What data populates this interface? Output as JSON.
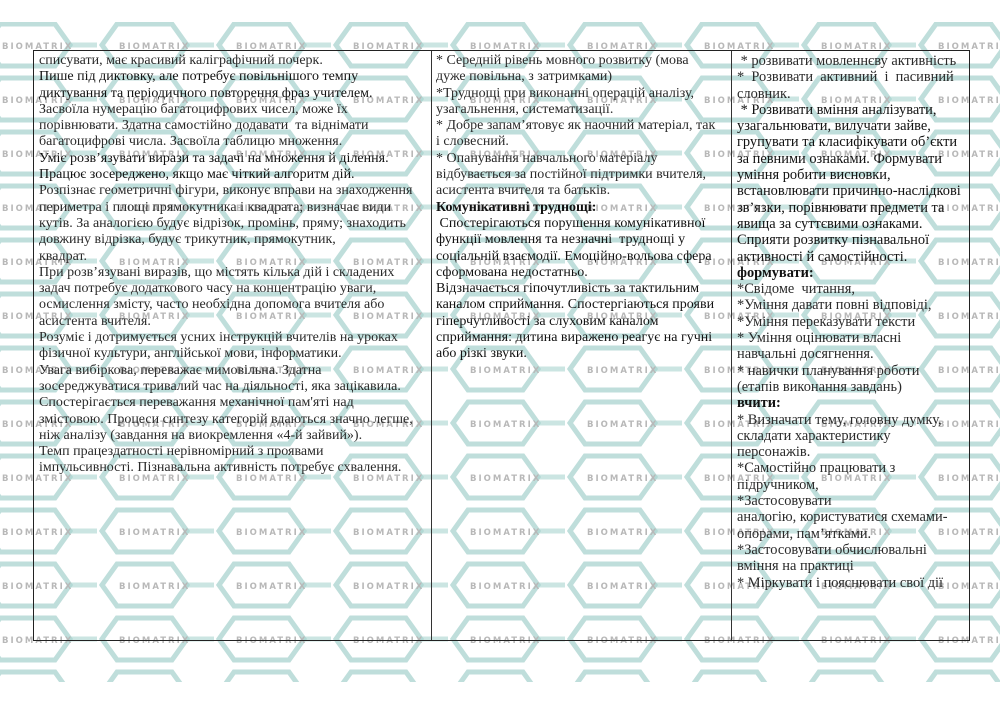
{
  "watermark": {
    "text": "BIOMATRIX",
    "color": "#a9d3cf",
    "text_color": "#b8b8b8"
  },
  "columns": [
    {
      "lines": [
        {
          "t": "списувати, має красивий каліграфічний почерк."
        },
        {
          "t": "Пише під диктовку, але потребує повільнішого темпу",
          "s": "d"
        },
        {
          "t": "диктування та періодичного повторення фраз учителем.",
          "s": "d"
        },
        {
          "t": "Засвоїла нумерацію багатоцифрових чисел, може їх"
        },
        {
          "t": "порівнювати. Здатна самостійно додавати  та віднімати"
        },
        {
          "t": "багатоцифрові числа. Засвоїла таблицю множення."
        },
        {
          "t": "Уміє розв’язувати вирази та задачі на множення й ділення.",
          "s": "d"
        },
        {
          "t": "Працює зосереджено, якщо має чіткий алгоритм дій.",
          "s": "d"
        },
        {
          "t": "Розпізнає геометричні фігури, виконує вправи на знаходження"
        },
        {
          "t": "периметра і площі прямокутника і квадрата; визначає види"
        },
        {
          "t": "кутів. За аналогією будує відрізок, промінь, пряму; знаходить"
        },
        {
          "t": "довжину відрізка, будує трикутник, прямокутник,"
        },
        {
          "t": "квадрат."
        },
        {
          "t": "При розв’язувані виразів, що містять кілька дій і складених"
        },
        {
          "t": "задач потребує додаткового часу на концентрацію уваги,"
        },
        {
          "t": "осмислення змісту, часто необхідна допомога вчителя або"
        },
        {
          "t": "асистента вчителя."
        },
        {
          "t": "Розуміє і дотримується усних інструкцій вчителів на уроках"
        },
        {
          "t": "фізичної культури, англійської мови, інформатики."
        },
        {
          "t": "Увага вибіркова, переважає мимовільна. Здатна"
        },
        {
          "t": "зосереджуватися тривалий час на діяльності, яка зацікавила."
        },
        {
          "t": "Спостерігається переважання механічної пам'яті над"
        },
        {
          "t": "змістовою. Процеси синтезу категорій вдаються значно легше,"
        },
        {
          "t": "ніж аналізу (завдання на виокремлення «4-й зайвий»)."
        },
        {
          "t": "Темп працездатності нерівномірний з проявами"
        },
        {
          "t": "імпульсивності. Пізнавальна активність потребує схвалення."
        }
      ]
    },
    {
      "lines": [
        {
          "t": "* Середній рівень мовного розвитку (мова"
        },
        {
          "t": "дуже повільна, з затримками)"
        },
        {
          "t": "*Труднощі при виконанні операцій аналізу,"
        },
        {
          "t": "узагальнення, систематизації."
        },
        {
          "t": "* Добре запам’ятовує як наочний матеріал, так"
        },
        {
          "t": "і словесний."
        },
        {
          "t": "* Опанування навчального матеріалу"
        },
        {
          "t": "відбувається за постійної підтримки вчителя,"
        },
        {
          "t": "асистента вчителя та батьків."
        },
        {
          "t": "Комунікативні труднощі:",
          "s": "b"
        },
        {
          "t": " Спостерігаються порушення комунікативної",
          "s": "d"
        },
        {
          "t": "функції мовлення та незначні  труднощі у",
          "s": "d"
        },
        {
          "t": "соціальній взаємодії. Емоційно-вольова сфера",
          "s": "d"
        },
        {
          "t": "сформована недостатньо.",
          "s": "d"
        },
        {
          "t": "Відзначається гіпочутливість за тактильним",
          "s": "d"
        },
        {
          "t": "каналом сприймання. Спостергіаються прояви",
          "s": "d"
        },
        {
          "t": "гіперчутливості за слуховим каналом",
          "s": "d"
        },
        {
          "t": "сприймання: дитина виражено реагує на гучні",
          "s": "d"
        },
        {
          "t": "або різкі звуки.",
          "s": "d"
        }
      ]
    },
    {
      "lines": [
        {
          "t": " * розвивати мовленнєву активність"
        },
        {
          "t": "*  Розвивати  активний  і  пасивний"
        },
        {
          "t": "словник."
        },
        {
          "t": " * Розвивати вміння аналізувати,",
          "s": "d"
        },
        {
          "t": "узагальнювати, вилучати зайве,",
          "s": "d"
        },
        {
          "t": "групувати та класифікувати об’єкти",
          "s": "d"
        },
        {
          "t": "за певними ознаками. Формувати",
          "s": "d"
        },
        {
          "t": "уміння робити висновки,",
          "s": "d"
        },
        {
          "t": "встановлювати причинно-наслідкові",
          "s": "d"
        },
        {
          "t": "зв’язки, порівнювати предмети та",
          "s": "d"
        },
        {
          "t": "явища за суттєвими ознаками.",
          "s": "d"
        },
        {
          "t": "Сприяти розвитку пізнавальної",
          "s": "d"
        },
        {
          "t": "активності й самостійності.",
          "s": "d"
        },
        {
          "t": "формувати:",
          "s": "b"
        },
        {
          "t": "*Свідоме  читання,"
        },
        {
          "t": "*Уміння давати повні відповіді,"
        },
        {
          "t": "*Уміння переказувати тексти"
        },
        {
          "t": "* Уміння оцінювати власні"
        },
        {
          "t": "навчальні досягнення."
        },
        {
          "t": "* навички планування роботи"
        },
        {
          "t": "(етапів виконання завдань)"
        },
        {
          "t": "вчити:",
          "s": "b"
        },
        {
          "t": "* Визначати тему, головну думку,"
        },
        {
          "t": "складати характеристику"
        },
        {
          "t": "персонажів."
        },
        {
          "t": "*Самостійно працювати з"
        },
        {
          "t": "підручником,"
        },
        {
          "t": "*Застосовувати"
        },
        {
          "t": "аналогію, користуватися схемами-"
        },
        {
          "t": "опорами, пам’ятками."
        },
        {
          "t": "*Застосовувати обчислювальні"
        },
        {
          "t": "вміння на практиці"
        },
        {
          "t": "* Міркувати і пояснювати свої дії"
        }
      ]
    }
  ]
}
